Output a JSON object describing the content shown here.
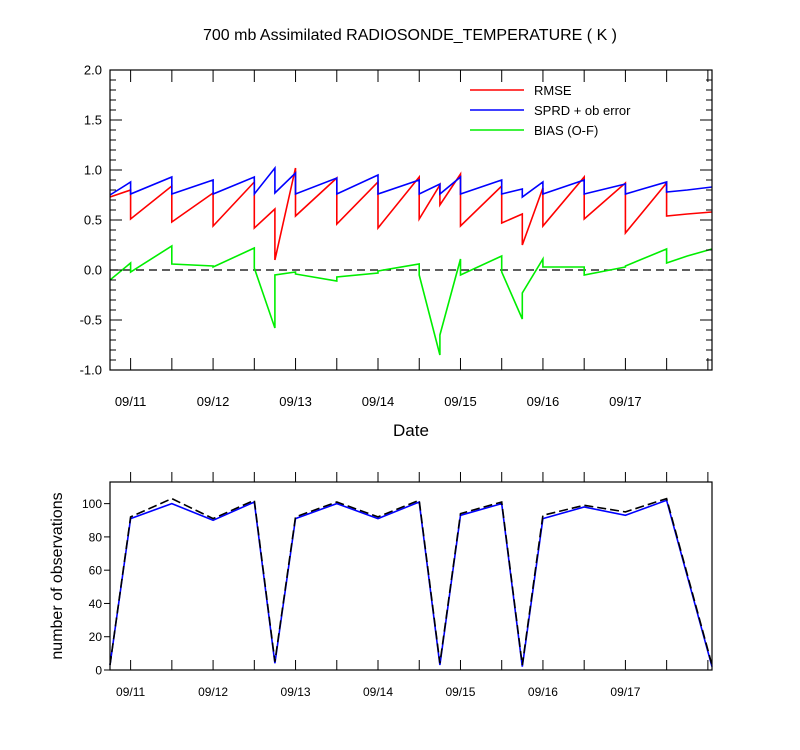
{
  "chart_data": [
    {
      "type": "line",
      "title": "700 mb Assimilated RADIOSONDE_TEMPERATURE ( K )",
      "xlabel": "Date",
      "ylabel": "",
      "xlim": [
        0,
        7.3
      ],
      "ylim": [
        -1.0,
        2.0
      ],
      "yticks": [
        -1.0,
        -0.5,
        0.0,
        0.5,
        1.0,
        1.5,
        2.0
      ],
      "ytick_labels": [
        "-1.0",
        "-0.5",
        "0.0",
        "0.5",
        "1.0",
        "1.5",
        "2.0"
      ],
      "xticks": [
        0.25,
        1.25,
        2.25,
        3.25,
        4.25,
        5.25,
        6.25
      ],
      "xtick_labels": [
        "09/11",
        "09/12",
        "09/13",
        "09/14",
        "09/15",
        "09/16",
        "09/17"
      ],
      "reference_line": {
        "y": 0.0,
        "style": "dashed"
      },
      "legend": {
        "position": "top-right"
      },
      "series": [
        {
          "name": "RMSE",
          "color": "#ff0000",
          "x": [
            0,
            0.25,
            0.25,
            0.75,
            0.75,
            1.25,
            1.25,
            1.75,
            1.75,
            2.0,
            2.0,
            2.25,
            2.25,
            2.75,
            2.75,
            3.25,
            3.25,
            3.75,
            3.75,
            4.0,
            4.0,
            4.25,
            4.25,
            4.75,
            4.75,
            5.0,
            5.0,
            5.25,
            5.25,
            5.75,
            5.75,
            6.25,
            6.25,
            6.75,
            6.75,
            7.0,
            7.0,
            7.3
          ],
          "y": [
            0.73,
            0.8,
            0.51,
            0.84,
            0.48,
            0.77,
            0.44,
            0.88,
            0.42,
            0.61,
            0.1,
            1.02,
            0.54,
            0.92,
            0.46,
            0.88,
            0.42,
            0.93,
            0.51,
            0.85,
            0.65,
            0.96,
            0.44,
            0.84,
            0.47,
            0.56,
            0.25,
            0.82,
            0.44,
            0.93,
            0.51,
            0.87,
            0.37,
            0.87,
            0.54,
            0.56,
            0.56,
            0.58
          ]
        },
        {
          "name": "SPRD + ob error",
          "color": "#0000ff",
          "x": [
            0,
            0.25,
            0.25,
            0.75,
            0.75,
            1.25,
            1.25,
            1.75,
            1.75,
            2.0,
            2.0,
            2.25,
            2.25,
            2.75,
            2.75,
            3.25,
            3.25,
            3.75,
            3.75,
            4.0,
            4.0,
            4.25,
            4.25,
            4.75,
            4.75,
            5.0,
            5.0,
            5.25,
            5.25,
            5.75,
            5.75,
            6.25,
            6.25,
            6.75,
            6.75,
            7.0,
            7.0,
            7.3
          ],
          "y": [
            0.75,
            0.88,
            0.76,
            0.93,
            0.76,
            0.9,
            0.76,
            0.93,
            0.76,
            1.02,
            0.77,
            0.97,
            0.76,
            0.92,
            0.76,
            0.95,
            0.76,
            0.9,
            0.76,
            0.86,
            0.76,
            0.93,
            0.76,
            0.9,
            0.76,
            0.81,
            0.73,
            0.88,
            0.76,
            0.9,
            0.76,
            0.86,
            0.76,
            0.88,
            0.78,
            0.8,
            0.8,
            0.83
          ]
        },
        {
          "name": "BIAS (O-F)",
          "color": "#00ee00",
          "x": [
            0,
            0.25,
            0.25,
            0.75,
            0.75,
            1.25,
            1.25,
            1.75,
            1.75,
            2.0,
            2.0,
            2.25,
            2.25,
            2.75,
            2.75,
            3.25,
            3.25,
            3.75,
            3.75,
            4.0,
            4.0,
            4.25,
            4.25,
            4.75,
            4.75,
            5.0,
            5.0,
            5.25,
            5.25,
            5.75,
            5.75,
            6.25,
            6.25,
            6.75,
            6.75,
            7.0,
            7.0,
            7.3
          ],
          "y": [
            -0.1,
            0.07,
            -0.02,
            0.24,
            0.06,
            0.04,
            0.03,
            0.22,
            0.02,
            -0.58,
            -0.05,
            -0.02,
            -0.04,
            -0.11,
            -0.07,
            -0.03,
            -0.01,
            0.06,
            -0.05,
            -0.85,
            -0.65,
            0.11,
            -0.05,
            0.14,
            -0.02,
            -0.49,
            -0.23,
            0.11,
            0.03,
            0.03,
            -0.05,
            0.03,
            0.04,
            0.21,
            0.07,
            0.14,
            0.14,
            0.21
          ]
        }
      ]
    },
    {
      "type": "line",
      "title": "",
      "xlabel": "",
      "ylabel": "number of observations",
      "xlim": [
        0,
        7.3
      ],
      "ylim": [
        0,
        113
      ],
      "yticks": [
        0,
        20,
        40,
        60,
        80,
        100
      ],
      "ytick_labels": [
        "0",
        "20",
        "40",
        "60",
        "80",
        "100"
      ],
      "xticks": [
        0.25,
        1.25,
        2.25,
        3.25,
        4.25,
        5.25,
        6.25
      ],
      "xtick_labels": [
        "09/11",
        "09/12",
        "09/13",
        "09/14",
        "09/15",
        "09/16",
        "09/17"
      ],
      "series": [
        {
          "color": "#0000ff",
          "style": "solid",
          "x": [
            0,
            0.25,
            0.75,
            1.25,
            1.75,
            2.0,
            2.25,
            2.75,
            3.25,
            3.75,
            4.0,
            4.25,
            4.75,
            5.0,
            5.25,
            5.75,
            6.25,
            6.75,
            7.3
          ],
          "y": [
            3,
            91,
            100,
            90,
            101,
            4,
            91,
            100,
            91,
            101,
            3,
            93,
            100,
            2,
            91,
            98,
            93,
            102,
            2
          ]
        },
        {
          "color": "#000000",
          "style": "dashed",
          "x": [
            0,
            0.25,
            0.75,
            1.25,
            1.75,
            2.0,
            2.25,
            2.75,
            3.25,
            3.75,
            4.0,
            4.25,
            4.75,
            5.0,
            5.25,
            5.75,
            6.25,
            6.75,
            7.3
          ],
          "y": [
            3,
            92,
            103,
            91,
            102,
            5,
            92,
            101,
            92,
            102,
            4,
            94,
            101,
            3,
            93,
            99,
            95,
            103,
            3
          ]
        }
      ]
    }
  ]
}
